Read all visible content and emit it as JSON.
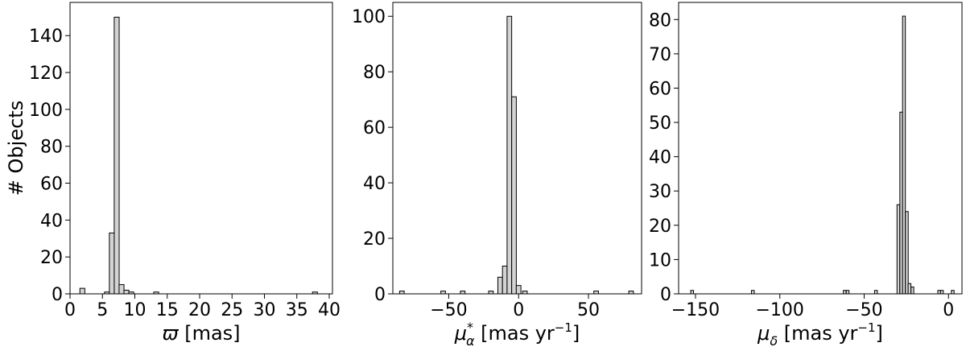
{
  "chart_data": [
    {
      "type": "bar",
      "ylabel": "# Objects",
      "xlabel_main": "ϖ",
      "xlabel_unit": " [mas]",
      "xlim": [
        0,
        40.5
      ],
      "ylim": [
        0,
        158
      ],
      "xticks": [
        0,
        5,
        10,
        15,
        20,
        25,
        30,
        35,
        40
      ],
      "yticks": [
        0,
        20,
        40,
        60,
        80,
        100,
        120,
        140
      ],
      "bin_width": 0.76,
      "bins": [
        {
          "x": 1.9,
          "value": 3
        },
        {
          "x": 5.7,
          "value": 1
        },
        {
          "x": 6.45,
          "value": 33
        },
        {
          "x": 7.2,
          "value": 150
        },
        {
          "x": 7.95,
          "value": 5
        },
        {
          "x": 8.7,
          "value": 2
        },
        {
          "x": 9.45,
          "value": 1
        },
        {
          "x": 13.3,
          "value": 1
        },
        {
          "x": 37.8,
          "value": 1
        }
      ]
    },
    {
      "type": "bar",
      "ylabel": "",
      "xlabel_main": "μ",
      "xlabel_sub": "α",
      "xlabel_sup": "*",
      "xlabel_unit": " [mas yr",
      "xlabel_unit_sup": "−1",
      "xlabel_close": "]",
      "xlim": [
        -90,
        88
      ],
      "ylim": [
        0,
        105
      ],
      "xticks": [
        -50,
        0,
        50
      ],
      "yticks": [
        0,
        20,
        40,
        60,
        80,
        100
      ],
      "bin_width": 3.3,
      "bins": [
        {
          "x": -83.5,
          "value": 1
        },
        {
          "x": -54,
          "value": 1
        },
        {
          "x": -40,
          "value": 1
        },
        {
          "x": -19.8,
          "value": 1
        },
        {
          "x": -13.2,
          "value": 6
        },
        {
          "x": -9.9,
          "value": 10
        },
        {
          "x": -6.6,
          "value": 100
        },
        {
          "x": -3.3,
          "value": 71
        },
        {
          "x": 0,
          "value": 3
        },
        {
          "x": 4.5,
          "value": 1
        },
        {
          "x": 55.5,
          "value": 1
        },
        {
          "x": 80.5,
          "value": 1
        }
      ]
    },
    {
      "type": "bar",
      "ylabel": "",
      "xlabel_main": "μ",
      "xlabel_sub": "δ",
      "xlabel_unit": " [mas yr",
      "xlabel_unit_sup": "−1",
      "xlabel_close": "]",
      "xlim": [
        -160,
        8
      ],
      "ylim": [
        0,
        85
      ],
      "xticks": [
        -150,
        -100,
        -50,
        0
      ],
      "yticks": [
        0,
        10,
        20,
        30,
        40,
        50,
        60,
        70,
        80
      ],
      "bin_width": 1.65,
      "bins": [
        {
          "x": -152,
          "value": 1
        },
        {
          "x": -116,
          "value": 1
        },
        {
          "x": -61.5,
          "value": 1
        },
        {
          "x": -59.8,
          "value": 1
        },
        {
          "x": -43,
          "value": 1
        },
        {
          "x": -29.7,
          "value": 26
        },
        {
          "x": -28.0,
          "value": 53
        },
        {
          "x": -26.4,
          "value": 81
        },
        {
          "x": -24.7,
          "value": 24
        },
        {
          "x": -23.1,
          "value": 3
        },
        {
          "x": -21.4,
          "value": 2
        },
        {
          "x": -5.5,
          "value": 1
        },
        {
          "x": -3.9,
          "value": 1
        },
        {
          "x": 2.5,
          "value": 1
        }
      ]
    }
  ],
  "colors": {
    "bar_fill": "#d3d3d3",
    "bar_edge": "#000000",
    "axes": "#000000"
  }
}
